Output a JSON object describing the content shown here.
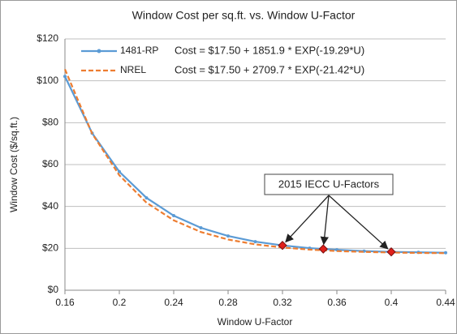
{
  "chart_data": {
    "type": "line",
    "title": "Window Cost per sq.ft. vs. Window U-Factor",
    "xlabel": "Window U-Factor",
    "ylabel": "Window Cost ($/sq.ft.)",
    "x": [
      0.16,
      0.18,
      0.2,
      0.22,
      0.24,
      0.26,
      0.28,
      0.3,
      0.32,
      0.34,
      0.36,
      0.38,
      0.4,
      0.42,
      0.44
    ],
    "series": [
      {
        "name": "1481-RP",
        "color": "#5b9bd5",
        "dash": false,
        "markers": true,
        "equation": "Cost = $17.50 + 1851.9 * EXP(-19.29*U)",
        "values": [
          102.1,
          75.0,
          56.6,
          44.1,
          35.6,
          29.8,
          25.9,
          23.2,
          21.4,
          20.1,
          19.3,
          18.7,
          18.3,
          18.1,
          17.9
        ]
      },
      {
        "name": "NREL",
        "color": "#ed7d31",
        "dash": true,
        "markers": false,
        "equation": "Cost = $17.50 + 2709.7 * EXP(-21.42*U)",
        "values": [
          105.5,
          74.8,
          54.9,
          41.8,
          33.4,
          27.8,
          24.2,
          21.9,
          20.4,
          19.4,
          18.7,
          18.3,
          18.0,
          17.8,
          17.7
        ]
      }
    ],
    "highlights": {
      "label": "2015 IECC U-Factors",
      "color": "#e0201b",
      "x": [
        0.32,
        0.35,
        0.4
      ],
      "values": [
        21.4,
        19.7,
        18.3
      ]
    },
    "xlim": [
      0.16,
      0.44
    ],
    "xticks": [
      0.16,
      0.2,
      0.24,
      0.28,
      0.32,
      0.36,
      0.4,
      0.44
    ],
    "ylim": [
      0,
      120
    ],
    "yticks": [
      {
        "value": 0,
        "label": "$0"
      },
      {
        "value": 20,
        "label": "$20"
      },
      {
        "value": 40,
        "label": "$40"
      },
      {
        "value": 60,
        "label": "$60"
      },
      {
        "value": 80,
        "label": "$80"
      },
      {
        "value": 100,
        "label": "$100"
      },
      {
        "value": 120,
        "label": "$120"
      }
    ],
    "grid": true
  }
}
